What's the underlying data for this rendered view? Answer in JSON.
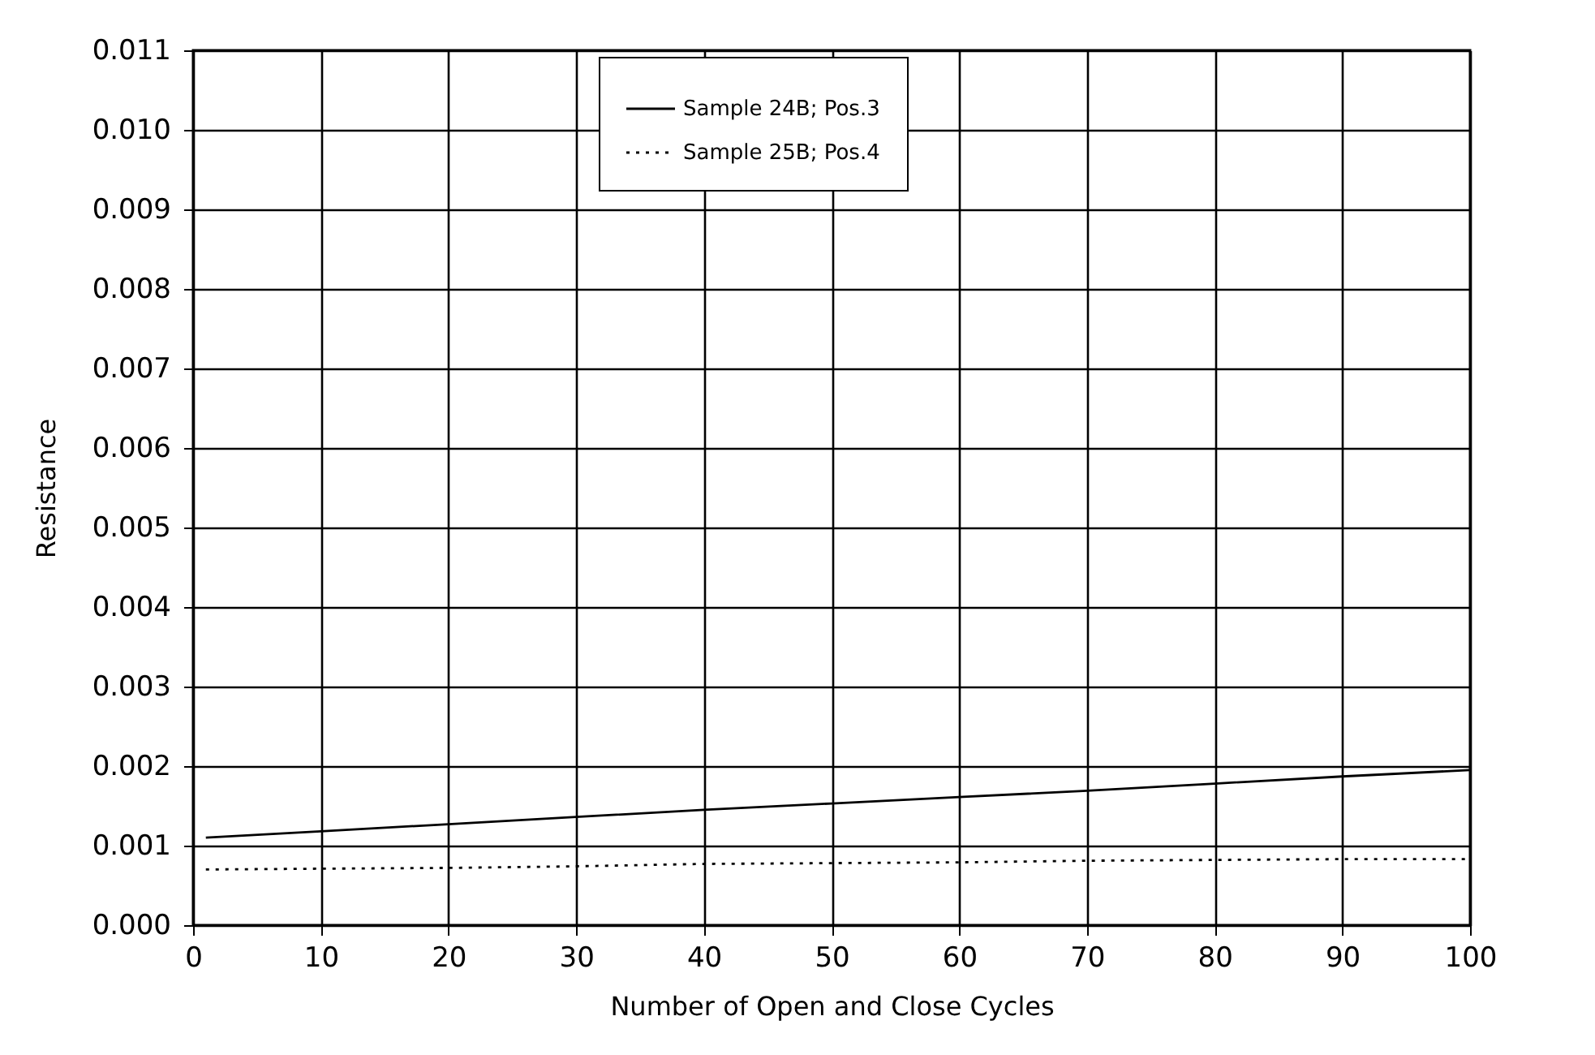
{
  "chart_data": {
    "type": "line",
    "xlabel": "Number of Open and Close Cycles",
    "ylabel": "Resistance",
    "x": [
      1,
      10,
      20,
      30,
      40,
      50,
      60,
      70,
      80,
      90,
      100
    ],
    "series": [
      {
        "name": "Sample 24B; Pos.3",
        "color": "#000000",
        "line_style": "solid",
        "values": [
          0.0011,
          0.00118,
          0.00127,
          0.00136,
          0.00145,
          0.00153,
          0.00161,
          0.00169,
          0.00178,
          0.00187,
          0.00195
        ]
      },
      {
        "name": "Sample 25B; Pos.4",
        "color": "#000000",
        "line_style": "dotted",
        "values": [
          0.0007,
          0.00071,
          0.00072,
          0.00074,
          0.00077,
          0.00078,
          0.00079,
          0.00081,
          0.00082,
          0.00083,
          0.00083
        ]
      }
    ],
    "xlim": [
      0,
      100
    ],
    "xticks": [
      0,
      10,
      20,
      30,
      40,
      50,
      60,
      70,
      80,
      90,
      100
    ],
    "ylim": [
      0,
      0.011
    ],
    "yticks": [
      {
        "value": 0,
        "label": "0.000"
      },
      {
        "value": 0.001,
        "label": "0.001"
      },
      {
        "value": 0.002,
        "label": "0.002"
      },
      {
        "value": 0.003,
        "label": "0.003"
      },
      {
        "value": 0.004,
        "label": "0.004"
      },
      {
        "value": 0.005,
        "label": "0.005"
      },
      {
        "value": 0.006,
        "label": "0.006"
      },
      {
        "value": 0.007,
        "label": "0.007"
      },
      {
        "value": 0.008,
        "label": "0.008"
      },
      {
        "value": 0.009,
        "label": "0.009"
      },
      {
        "value": 0.01,
        "label": "0.010"
      },
      {
        "value": 0.011,
        "label": "0.011"
      }
    ],
    "grid": true,
    "legend": "top"
  }
}
